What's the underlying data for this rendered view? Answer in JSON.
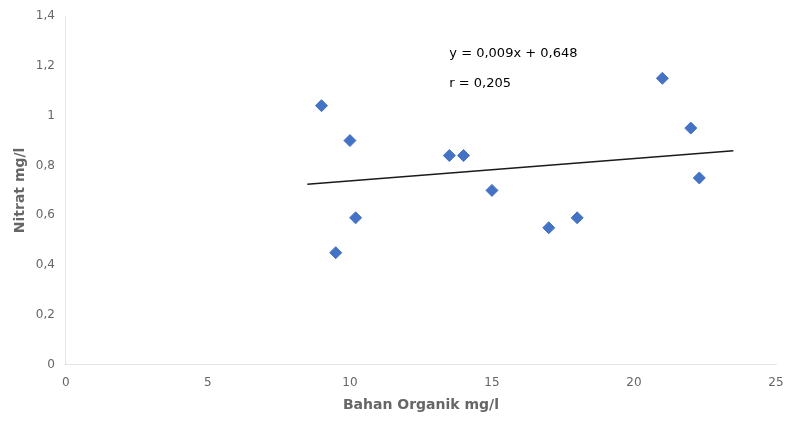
{
  "chart_data": {
    "type": "scatter",
    "x_label": "Bahan Organik mg/l",
    "y_label": "Nitrat mg/l",
    "series": [
      {
        "type": "scatter",
        "color": "#4472C4",
        "marker": "diamond",
        "x": [
          9.0,
          9.5,
          10.0,
          10.2,
          13.5,
          14.0,
          15.0,
          17.0,
          18.0,
          21.0,
          22.0,
          22.3
        ],
        "values": [
          1.04,
          0.45,
          0.9,
          0.59,
          0.84,
          0.84,
          0.7,
          0.55,
          0.59,
          1.15,
          0.95,
          0.75
        ]
      },
      {
        "type": "line",
        "color": "#1a1a1a",
        "x": [
          8.5,
          23.5
        ],
        "values": [
          0.7245,
          0.8595
        ]
      }
    ],
    "annotations": [
      {
        "text": "y = 0,009x + 0,648",
        "x": 13.5,
        "y": 1.25
      },
      {
        "text": "r = 0,205",
        "x": 13.5,
        "y": 1.13
      }
    ],
    "xlim": [
      0,
      25
    ],
    "ylim": [
      0,
      1.4
    ],
    "xticks": [
      0,
      5,
      10,
      15,
      20,
      25
    ],
    "yticks": [
      0,
      {
        "value": 0.2,
        "label": "0,2"
      },
      {
        "value": 0.4,
        "label": "0,4"
      },
      {
        "value": 0.6,
        "label": "0,6"
      },
      {
        "value": 0.8,
        "label": "0,8"
      },
      1,
      {
        "value": 1.2,
        "label": "1,2"
      },
      {
        "value": 1.4,
        "label": "1,4"
      }
    ],
    "grid": false
  }
}
